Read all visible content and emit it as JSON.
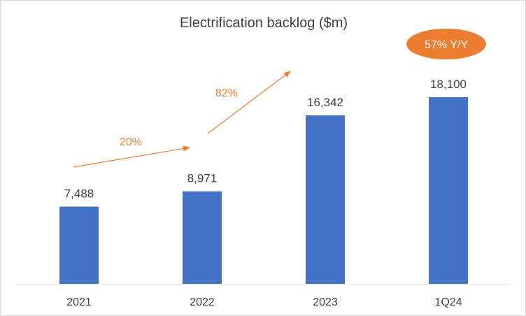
{
  "chart_data": {
    "type": "bar",
    "title": "Electrification backlog ($m)",
    "categories": [
      "2021",
      "2022",
      "2023",
      "1Q24"
    ],
    "values": [
      7488,
      8971,
      16342,
      18100
    ],
    "value_labels": [
      "7,488",
      "8,971",
      "16,342",
      "18,100"
    ],
    "bar_color": "#4472c4",
    "annotation_color": "#ed7d31",
    "growth_annotations": [
      {
        "label": "20%",
        "from": "2021",
        "to": "2022"
      },
      {
        "label": "82%",
        "from": "2022",
        "to": "2023"
      }
    ],
    "badge": {
      "label": "57% Y/Y",
      "category": "1Q24"
    },
    "xlabel": "",
    "ylabel": "",
    "ylim": [
      0,
      20000
    ],
    "grid": false,
    "legend": "none"
  }
}
